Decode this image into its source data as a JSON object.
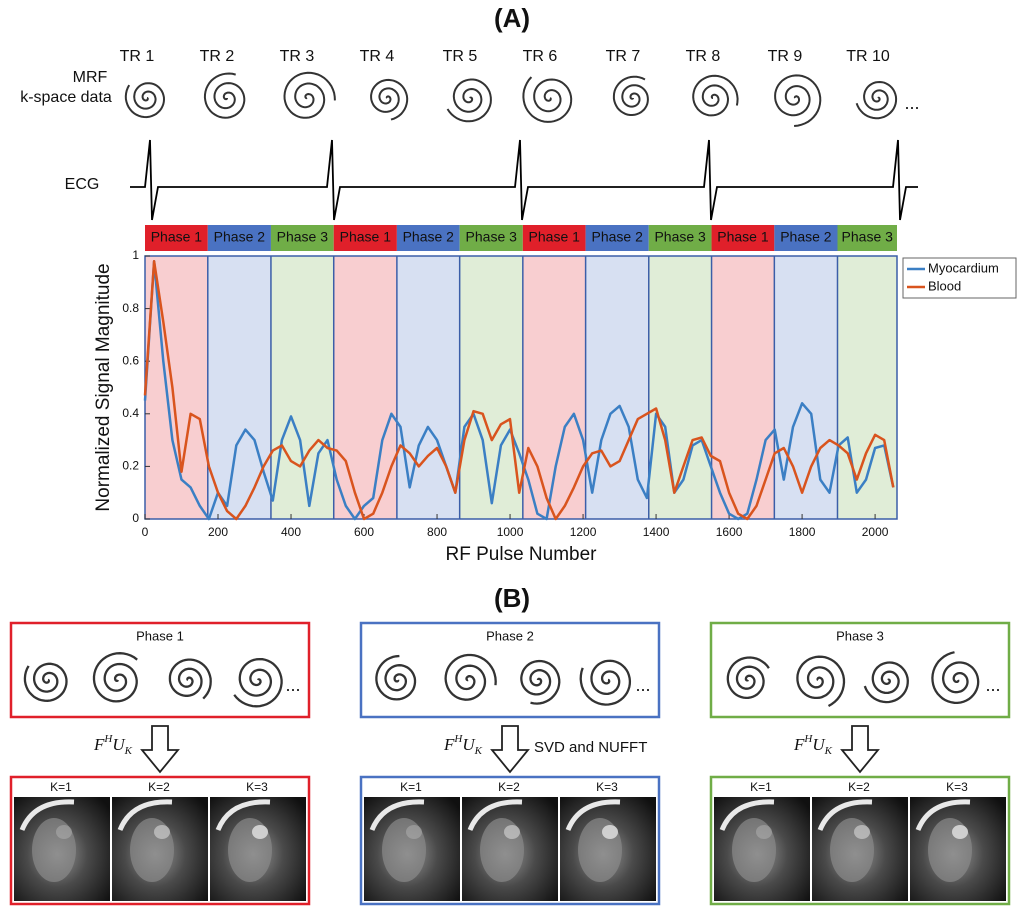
{
  "figure": {
    "panel_a": "(A)",
    "panel_b": "(B)",
    "mrf_label": [
      "MRF",
      "k-space data"
    ],
    "tr_labels": [
      "TR 1",
      "TR 2",
      "TR 3",
      "TR 4",
      "TR 5",
      "TR 6",
      "TR 7",
      "TR 8",
      "TR 9",
      "TR 10"
    ],
    "ellipsis": "...",
    "ecg_label": "ECG",
    "operator_parts": [
      "F",
      "H",
      "U",
      "K"
    ],
    "groups": [
      {
        "title": "Phase 1",
        "color": "#e0202a",
        "images": [
          "K=1",
          "K=2",
          "K=3"
        ]
      },
      {
        "title": "Phase 2",
        "color": "#4a72c2",
        "note": "SVD and NUFFT",
        "images": [
          "K=1",
          "K=2",
          "K=3"
        ]
      },
      {
        "title": "Phase 3",
        "color": "#70ad47",
        "images": [
          "K=1",
          "K=2",
          "K=3"
        ]
      }
    ]
  },
  "chart_data": {
    "type": "line",
    "xlabel": "RF Pulse Number",
    "ylabel": "Normalized Signal Magnitude",
    "xlim": [
      0,
      2060
    ],
    "ylim": [
      0,
      1
    ],
    "xticks": [
      0,
      200,
      400,
      600,
      800,
      1000,
      1200,
      1400,
      1600,
      1800,
      2000
    ],
    "yticks": [
      0,
      0.2,
      0.4,
      0.6,
      0.8,
      1
    ],
    "legend": "upper right outside",
    "phases": [
      {
        "label": "Phase 1",
        "start": 0,
        "end": 172,
        "color": "#e0202a"
      },
      {
        "label": "Phase 2",
        "start": 172,
        "end": 345,
        "color": "#4a72c2"
      },
      {
        "label": "Phase 3",
        "start": 345,
        "end": 517,
        "color": "#70ad47"
      },
      {
        "label": "Phase 1",
        "start": 517,
        "end": 690,
        "color": "#e0202a"
      },
      {
        "label": "Phase 2",
        "start": 690,
        "end": 862,
        "color": "#4a72c2"
      },
      {
        "label": "Phase 3",
        "start": 862,
        "end": 1035,
        "color": "#70ad47"
      },
      {
        "label": "Phase 1",
        "start": 1035,
        "end": 1207,
        "color": "#e0202a"
      },
      {
        "label": "Phase 2",
        "start": 1207,
        "end": 1380,
        "color": "#4a72c2"
      },
      {
        "label": "Phase 3",
        "start": 1380,
        "end": 1552,
        "color": "#70ad47"
      },
      {
        "label": "Phase 1",
        "start": 1552,
        "end": 1724,
        "color": "#e0202a"
      },
      {
        "label": "Phase 2",
        "start": 1724,
        "end": 1897,
        "color": "#4a72c2"
      },
      {
        "label": "Phase 3",
        "start": 1897,
        "end": 2060,
        "color": "#70ad47"
      }
    ],
    "x": [
      0,
      25,
      50,
      75,
      100,
      125,
      150,
      175,
      200,
      225,
      250,
      275,
      300,
      325,
      350,
      375,
      400,
      425,
      450,
      475,
      500,
      525,
      550,
      575,
      600,
      625,
      650,
      675,
      700,
      725,
      750,
      775,
      800,
      825,
      850,
      875,
      900,
      925,
      950,
      975,
      1000,
      1025,
      1050,
      1075,
      1100,
      1125,
      1150,
      1175,
      1200,
      1225,
      1250,
      1275,
      1300,
      1325,
      1350,
      1375,
      1400,
      1425,
      1450,
      1475,
      1500,
      1525,
      1550,
      1575,
      1600,
      1625,
      1650,
      1675,
      1700,
      1725,
      1750,
      1775,
      1800,
      1825,
      1850,
      1875,
      1900,
      1925,
      1950,
      1975,
      2000,
      2025,
      2050
    ],
    "series": [
      {
        "name": "Myocardium",
        "color": "#3b7fc4",
        "values": [
          0.45,
          0.98,
          0.6,
          0.3,
          0.15,
          0.12,
          0.05,
          0.0,
          0.1,
          0.05,
          0.28,
          0.34,
          0.3,
          0.18,
          0.07,
          0.3,
          0.39,
          0.3,
          0.05,
          0.25,
          0.3,
          0.15,
          0.05,
          0.0,
          0.05,
          0.08,
          0.3,
          0.4,
          0.35,
          0.12,
          0.28,
          0.35,
          0.3,
          0.2,
          0.1,
          0.35,
          0.4,
          0.3,
          0.06,
          0.28,
          0.34,
          0.25,
          0.15,
          0.02,
          0.0,
          0.2,
          0.35,
          0.4,
          0.3,
          0.1,
          0.3,
          0.4,
          0.43,
          0.35,
          0.15,
          0.08,
          0.4,
          0.35,
          0.1,
          0.15,
          0.28,
          0.3,
          0.2,
          0.1,
          0.02,
          0.0,
          0.02,
          0.15,
          0.3,
          0.34,
          0.15,
          0.35,
          0.44,
          0.4,
          0.15,
          0.1,
          0.28,
          0.31,
          0.1,
          0.15,
          0.27,
          0.28,
          0.12
        ]
      },
      {
        "name": "Blood",
        "color": "#d9541e",
        "values": [
          0.47,
          0.98,
          0.75,
          0.5,
          0.18,
          0.4,
          0.38,
          0.2,
          0.1,
          0.03,
          0.0,
          0.05,
          0.12,
          0.2,
          0.26,
          0.28,
          0.22,
          0.2,
          0.26,
          0.3,
          0.27,
          0.26,
          0.22,
          0.1,
          0.0,
          0.02,
          0.1,
          0.2,
          0.28,
          0.25,
          0.2,
          0.24,
          0.27,
          0.2,
          0.1,
          0.3,
          0.41,
          0.4,
          0.3,
          0.36,
          0.38,
          0.1,
          0.27,
          0.2,
          0.08,
          0.0,
          0.05,
          0.12,
          0.2,
          0.25,
          0.26,
          0.2,
          0.22,
          0.3,
          0.38,
          0.4,
          0.42,
          0.3,
          0.1,
          0.2,
          0.3,
          0.31,
          0.24,
          0.22,
          0.1,
          0.02,
          0.0,
          0.05,
          0.15,
          0.25,
          0.27,
          0.2,
          0.1,
          0.2,
          0.27,
          0.3,
          0.28,
          0.25,
          0.15,
          0.25,
          0.32,
          0.3,
          0.12
        ]
      }
    ]
  }
}
